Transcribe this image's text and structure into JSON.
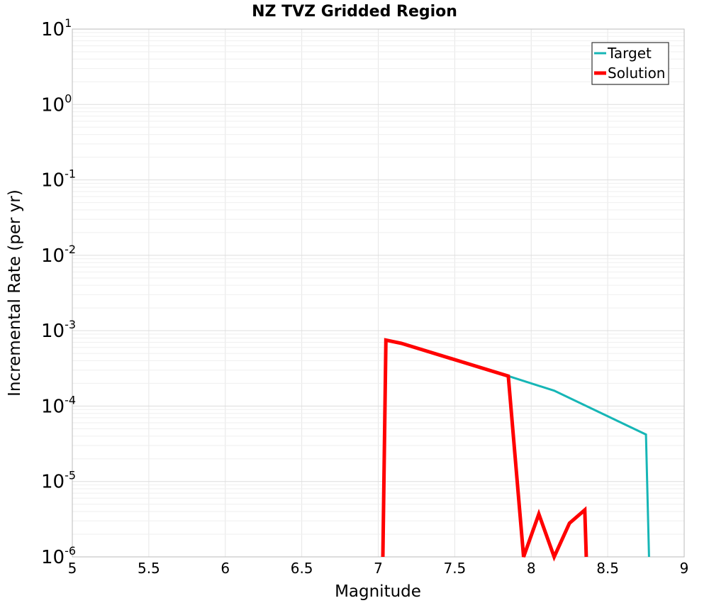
{
  "chart_data": {
    "type": "line",
    "title": "NZ TVZ Gridded Region",
    "xlabel": "Magnitude",
    "ylabel": "Incremental Rate (per yr)",
    "xlim": [
      5,
      9
    ],
    "ylim": [
      1e-06,
      10
    ],
    "yscale": "log",
    "grid": true,
    "legend_position": "top-right",
    "x_ticks": [
      "5",
      "5.5",
      "6",
      "6.5",
      "7",
      "7.5",
      "8",
      "8.5",
      "9"
    ],
    "y_ticks": [
      {
        "base": "10",
        "exp": "-6"
      },
      {
        "base": "10",
        "exp": "-5"
      },
      {
        "base": "10",
        "exp": "-4"
      },
      {
        "base": "10",
        "exp": "-3"
      },
      {
        "base": "10",
        "exp": "-2"
      },
      {
        "base": "10",
        "exp": "-1"
      },
      {
        "base": "10",
        "exp": "0"
      },
      {
        "base": "10",
        "exp": "1"
      }
    ],
    "series": [
      {
        "name": "Target",
        "color": "#16b6b6",
        "x": [
          7.85,
          8.15,
          8.75,
          8.77
        ],
        "y": [
          0.00025,
          0.00016,
          4.2e-05,
          1e-06
        ]
      },
      {
        "name": "Solution",
        "color": "#ff0000",
        "x": [
          7.03,
          7.05,
          7.15,
          7.85,
          7.95,
          8.05,
          8.15,
          8.25,
          8.35,
          8.36
        ],
        "y": [
          1e-06,
          0.00075,
          0.00068,
          0.00025,
          1e-06,
          3.7e-06,
          1e-06,
          2.8e-06,
          4.2e-06,
          1e-06
        ]
      }
    ]
  }
}
